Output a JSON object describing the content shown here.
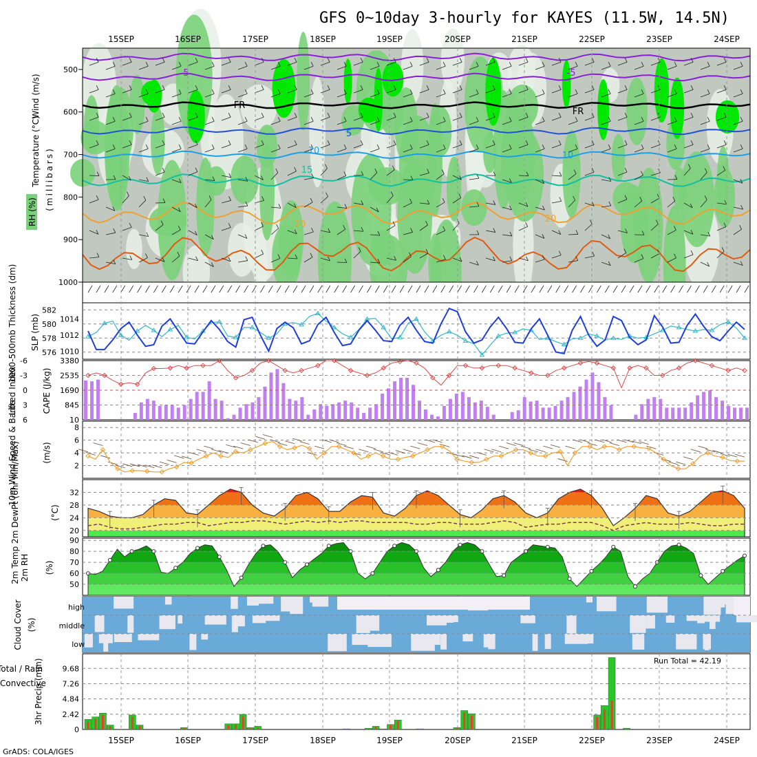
{
  "title": "GFS 0~10day 3-hourly for KAYES (11.5W, 14.5N)",
  "footer": "GrADS: COLA/IGES",
  "dates": [
    "15SEP",
    "16SEP",
    "17SEP",
    "18SEP",
    "19SEP",
    "20SEP",
    "21SEP",
    "22SEP",
    "23SEP",
    "24SEP"
  ],
  "colors": {
    "rh_dark": "#00e800",
    "rh_mid": "#7ad17a",
    "rh_gray": "#c0c8c0",
    "rh_light": "#e8f0e8",
    "temp_purple": "#8a1ed8",
    "temp_blue": "#1e50d8",
    "temp_cyan": "#1aa0e8",
    "temp_teal": "#10c0a0",
    "temp_orange": "#f0a030",
    "temp_red": "#e05a10",
    "slp": "#1e3ce0",
    "thickness": "#30b8c8",
    "lifted": "#e04848",
    "cape": "#c080f0",
    "wind10m": "#f0a030",
    "temp_max": "#e00000",
    "rh2m": "#10b010",
    "cloud": "#6aaad8",
    "precip_total": "#28c828",
    "precip_conv": "#e84030"
  },
  "panels": {
    "upper": {
      "ylabel_wind": "Wind (m/s)",
      "ylabel_temp": "Temperature (°C)",
      "ylabel_rh": "RH (%)",
      "ylabel_units": "(millibars)",
      "ticks": [
        "500",
        "600",
        "700",
        "800",
        "900",
        "1000"
      ],
      "contour_labels": {
        "m5": "-5",
        "fr": "FR",
        "p5": "5",
        "p10": "10",
        "p15": "15",
        "p20": "20"
      }
    },
    "slp": {
      "ylabel_thick": "1000-500mb Thickness (dm)",
      "ylabel_slp": "SLP (mb)",
      "ticks_left": [
        "582",
        "580",
        "578",
        "576"
      ],
      "ticks_right": [
        "1014",
        "1012",
        "1010"
      ]
    },
    "cape": {
      "ylabel_li": "Lifted Index",
      "ylabel_cape": "CAPE (J/kg)",
      "ticks_left": [
        "-6",
        "-3",
        "0",
        "3",
        "6"
      ],
      "ticks_right": [
        "3380",
        "2535",
        "1690",
        "845",
        "10"
      ]
    },
    "wind": {
      "ylabel": "10m Wind Speed & Barbs",
      "units": "(m/s)",
      "ticks": [
        "8",
        "6",
        "4",
        "2"
      ]
    },
    "temp": {
      "ylabel": "2m Temp 2m DewPt (6hr Min/Max)",
      "units": "(°C)",
      "ticks": [
        "32",
        "28",
        "24",
        "20"
      ]
    },
    "rh": {
      "ylabel": "2m RH",
      "units": "(%)",
      "ticks": [
        "90",
        "80",
        "70",
        "60",
        "50"
      ]
    },
    "cloud": {
      "ylabel": "Cloud Cover",
      "units": "(%)",
      "levels": [
        "high",
        "middle",
        "low"
      ]
    },
    "precip": {
      "ylabel_total": "Total / Rain",
      "ylabel_conv": "Convective",
      "ylabel_units": "3hr Precip (mm)",
      "ticks": [
        "9.68",
        "7.26",
        "4.84",
        "2.42",
        "0"
      ],
      "run_total": "Run Total = 42.19"
    }
  },
  "chart_data": [
    {
      "type": "line",
      "title": "1000-500mb Thickness (dm) / SLP (mb)",
      "series": [
        {
          "name": "SLP (mb)",
          "values": [
            1012.5,
            1010.2,
            1010.2,
            1011.4,
            1012.8,
            1013.6,
            1012.0,
            1010.6,
            1010.8,
            1013.1,
            1014.0,
            1012.5,
            1011.0,
            1010.9,
            1012.4,
            1013.8,
            1012.7,
            1011.2,
            1010.5,
            1013.9,
            1014.2,
            1012.0,
            1010.0,
            1012.8,
            1013.6,
            1012.9,
            1010.9,
            1011.3,
            1013.3,
            1014.2,
            1012.3,
            1010.7,
            1010.9,
            1012.6,
            1013.8,
            1012.6,
            1011.3,
            1011.2,
            1013.2,
            1014.2,
            1012.6,
            1011.2,
            1011.0,
            1013.4,
            1015.3,
            1014.9,
            1012.4,
            1011.0,
            1011.4,
            1013.0,
            1014.2,
            1012.8,
            1011.1,
            1011.0,
            1012.8,
            1014.0,
            1012.0,
            1009.9,
            1009.7,
            1012.6,
            1014.3,
            1012.0,
            1010.6,
            1011.4,
            1014.3,
            1013.8,
            1011.7,
            1010.8,
            1011.4,
            1014.4,
            1013.0,
            1011.0,
            1011.1,
            1013.2,
            1014.6,
            1013.1,
            1011.8,
            1011.3,
            1012.5,
            1013.6,
            1012.7
          ]
        },
        {
          "name": "1000-500mb Thickness (dm)",
          "values": [
            578.2,
            578.8,
            580.1,
            580.4,
            578.4,
            577.7,
            579.0,
            579.8,
            579.1,
            578.2,
            579.2,
            579.8,
            578.1,
            577.9,
            579.0,
            580.2,
            580.3,
            578.3,
            578.1,
            579.5,
            579.5,
            578.8,
            578.0,
            578.6,
            580.0,
            580.2,
            579.9,
            581.1,
            581.5,
            580.4,
            579.5,
            578.6,
            578.1,
            579.2,
            580.7,
            580.8,
            579.5,
            577.9,
            578.1,
            580.1,
            580.7,
            578.9,
            577.6,
            578.4,
            578.9,
            578.4,
            577.6,
            577.2,
            575.6,
            577.0,
            578.3,
            578.7,
            578.8,
            579.3,
            579.1,
            577.8,
            578.0,
            577.5,
            577.1,
            577.9,
            578.0,
            578.6,
            578.3,
            577.7,
            578.0,
            577.8,
            578.3,
            578.0,
            578.1,
            578.6,
            579.1,
            579.7,
            579.5,
            579.2,
            579.0,
            579.2,
            579.1,
            579.9,
            580.3,
            579.4,
            578.0
          ]
        }
      ],
      "ylim_left": [
        575,
        583
      ],
      "ylim_right": [
        1009,
        1016
      ]
    },
    {
      "type": "bar",
      "title": "Lifted Index / CAPE (J/kg)",
      "series": [
        {
          "name": "CAPE (J/kg)",
          "values": [
            2250,
            2200,
            2300,
            10,
            10,
            10,
            10,
            10,
            400,
            1000,
            1200,
            1100,
            800,
            850,
            850,
            700,
            850,
            1200,
            1600,
            1600,
            2200,
            1200,
            1100,
            100,
            300,
            700,
            900,
            1000,
            1300,
            1900,
            2700,
            2900,
            2100,
            1200,
            1100,
            1300,
            300,
            600,
            900,
            800,
            900,
            1000,
            1100,
            1000,
            700,
            400,
            700,
            900,
            1500,
            1800,
            2200,
            2400,
            2400,
            2000,
            1100,
            600,
            300,
            200,
            800,
            1200,
            1500,
            1600,
            1300,
            1000,
            1100,
            750,
            300,
            10,
            10,
            450,
            550,
            1300,
            1050,
            1100,
            700,
            700,
            800,
            1100,
            1300,
            1600,
            1900,
            2300,
            2700,
            2150,
            1300,
            850,
            10,
            10,
            10,
            300,
            900,
            1200,
            1300,
            1200,
            700,
            700,
            700,
            700,
            1000,
            1400,
            1600,
            1700,
            1300,
            1100,
            800,
            700,
            700,
            700
          ]
        },
        {
          "name": "Lifted Index",
          "values": [
            -3,
            -3.5,
            -3,
            -2,
            -1.2,
            -1.5,
            -1.2,
            -3.5,
            -4.4,
            -4.4,
            -4.5,
            -5,
            -4.5,
            -5,
            -5,
            -5,
            -6,
            -4,
            -2.5,
            -3,
            -4,
            -5.5,
            -6,
            -5,
            -4,
            -3.5,
            -4,
            -4.5,
            -5,
            -6,
            -6,
            -5,
            -4,
            -3.5,
            -3,
            -3.5,
            -4.5,
            -5.5,
            -5.8,
            -6,
            -5.5,
            -4.5,
            -2.5,
            -1,
            -3,
            -5,
            -5,
            -4.5,
            -4.5,
            -5,
            -5,
            -5,
            -4.5,
            -4,
            -3.5,
            -3,
            -3,
            -4,
            -4.5,
            -5,
            -5.5,
            -5.8,
            -5.5,
            -5,
            -4.5,
            -0.5,
            -4.5,
            -5,
            -4.5,
            -3,
            -3,
            -4,
            -4.5,
            -5.5,
            -6,
            -5.5,
            -5,
            -4.5,
            -4,
            -4.5,
            -4
          ]
        }
      ],
      "ylim_left": [
        6,
        -6
      ],
      "ylim_right": [
        10,
        3380
      ]
    },
    {
      "type": "line",
      "title": "10m Wind Speed (m/s)",
      "series": [
        {
          "name": "10m Wind Speed",
          "values": [
            3.5,
            3,
            4.5,
            2.5,
            1.5,
            1,
            1.2,
            1.2,
            1.1,
            1,
            1,
            1.5,
            1.8,
            2.5,
            2.4,
            3,
            3.5,
            4,
            3.5,
            3.3,
            4.2,
            4,
            4.5,
            5,
            5.5,
            5.8,
            5,
            4.5,
            4.8,
            5.2,
            4.7,
            3,
            4,
            5,
            5,
            4.5,
            4,
            3,
            3.5,
            4,
            3.5,
            3,
            3,
            3.3,
            3.5,
            4,
            4.5,
            5,
            5,
            4.3,
            3,
            2.7,
            2.5,
            2.5,
            3,
            3.5,
            3.5,
            4,
            4.5,
            4.5,
            4,
            3.5,
            3.5,
            4,
            4.2,
            2,
            4,
            5,
            5,
            4.5,
            5,
            5,
            4.5,
            5,
            5,
            4.8,
            4.7,
            4,
            3,
            2,
            1.5,
            1.5,
            2.3,
            3.5,
            4,
            3.5,
            3.3,
            2.8,
            2.7,
            2.7
          ]
        }
      ],
      "ylim": [
        0,
        9
      ]
    },
    {
      "type": "area",
      "title": "2m Temp / 2m DewPt (°C)",
      "series": [
        {
          "name": "2m Temp",
          "values": [
            27,
            26,
            24.5,
            24,
            24,
            25,
            28,
            30,
            29.5,
            25.5,
            25,
            28,
            31,
            33,
            32,
            28,
            25.5,
            24.5,
            27,
            31,
            32,
            30,
            26,
            26,
            29,
            31,
            30.5,
            25.5,
            24.5,
            27,
            31,
            32.5,
            31,
            28,
            25,
            24,
            26.5,
            30,
            31,
            29,
            25.5,
            24,
            25.5,
            30,
            32,
            33,
            31,
            27,
            21.5,
            24,
            27,
            31,
            30,
            25.5,
            24.5,
            26,
            29,
            32,
            32.5,
            31,
            27
          ]
        },
        {
          "name": "2m DewPt",
          "values": [
            21.5,
            22,
            21,
            20.5,
            20.5,
            21,
            21.5,
            22,
            22,
            22.5,
            22.5,
            21.5,
            22,
            22.5,
            22.5,
            23,
            23,
            22.5,
            22,
            22.5,
            23,
            22.5,
            23,
            22.5,
            23,
            23,
            22.5,
            22.5,
            22.5,
            22.5,
            22,
            22,
            22.5,
            22.5,
            22,
            22,
            22,
            22.5,
            23,
            22.5,
            21,
            21.5,
            22,
            22,
            22.5,
            22.5,
            22.5,
            21.5,
            20,
            21.5,
            22,
            22.5,
            22,
            22,
            22,
            22.5,
            22,
            21.5,
            21.5,
            22,
            22
          ]
        }
      ],
      "ylim": [
        18,
        36
      ]
    },
    {
      "type": "area",
      "title": "2m RH (%)",
      "series": [
        {
          "name": "2m RH",
          "values": [
            60,
            59,
            62,
            72,
            82,
            75,
            80,
            82,
            85,
            80,
            61,
            60,
            65,
            70,
            78,
            83,
            86,
            85,
            75,
            63,
            48,
            56,
            68,
            78,
            85,
            86,
            80,
            70,
            56,
            63,
            68,
            73,
            78,
            85,
            87,
            88,
            80,
            60,
            55,
            60,
            70,
            80,
            85,
            88,
            86,
            80,
            65,
            57,
            63,
            70,
            80,
            86,
            88,
            86,
            80,
            68,
            57,
            58,
            70,
            75,
            80,
            86,
            85,
            84,
            83,
            75,
            55,
            48,
            55,
            62,
            68,
            75,
            84,
            80,
            57,
            48,
            55,
            60,
            70,
            80,
            85,
            86,
            83,
            78,
            58,
            50,
            56,
            62,
            67,
            72,
            76
          ]
        }
      ],
      "ylim": [
        40,
        92
      ]
    },
    {
      "type": "bar",
      "title": "3hr Precip (mm)",
      "series": [
        {
          "name": "Total / Rain",
          "values": [
            1.6,
            2.0,
            2.6,
            0.7,
            0,
            0,
            2.3,
            0.7,
            0,
            0,
            0,
            0,
            0,
            0.3,
            0,
            0,
            0,
            0,
            0,
            0.9,
            0.9,
            2.4,
            0.3,
            0.5,
            0,
            0,
            0,
            0,
            0,
            0,
            0,
            0,
            0,
            0,
            0,
            0.1,
            0,
            0,
            0.2,
            0.5,
            0.1,
            0.8,
            1.5,
            0,
            0,
            0.1,
            0,
            0,
            0,
            0,
            0.3,
            3.0,
            2.5,
            0,
            0,
            0,
            0,
            0,
            0,
            0,
            0,
            0,
            0,
            0,
            0,
            0,
            0,
            0,
            0,
            2.3,
            3.8,
            11.4,
            0,
            0.2,
            0,
            0,
            0,
            0,
            0,
            0,
            0,
            0,
            0,
            0,
            0,
            0,
            0,
            0,
            0,
            0
          ]
        },
        {
          "name": "Convective",
          "values": [
            1.2,
            1.7,
            2.3,
            0.5,
            0,
            0,
            2.0,
            0.6,
            0,
            0,
            0,
            0,
            0,
            0.2,
            0,
            0,
            0,
            0,
            0,
            0.7,
            0.8,
            2.1,
            0.2,
            0.3,
            0,
            0,
            0,
            0,
            0,
            0,
            0,
            0,
            0,
            0,
            0,
            0.1,
            0,
            0,
            0.1,
            0.4,
            0.1,
            0.7,
            1.3,
            0,
            0,
            0.1,
            0,
            0,
            0,
            0,
            0.2,
            2.7,
            2.2,
            0,
            0,
            0,
            0,
            0,
            0,
            0,
            0,
            0,
            0,
            0,
            0,
            0,
            0,
            0,
            0,
            2.0,
            3.2,
            4.6,
            0,
            0.1,
            0,
            0,
            0,
            0,
            0,
            0,
            0,
            0,
            0,
            0,
            0,
            0,
            0,
            0,
            0,
            0
          ]
        }
      ],
      "ylim": [
        0,
        12
      ]
    }
  ]
}
